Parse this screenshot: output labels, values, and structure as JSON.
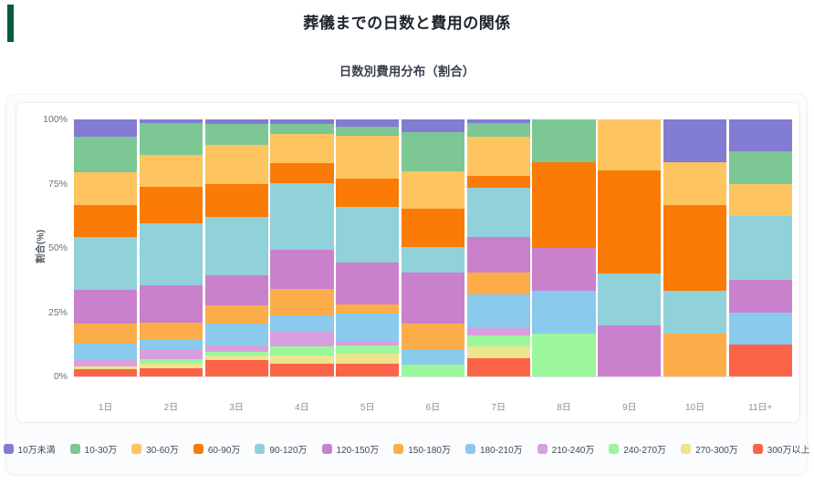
{
  "page": {
    "title": "葬儀までの日数と費用の関係"
  },
  "chart": {
    "subtitle": "日数別費用分布（割合）"
  },
  "accent_color": "#0a5a43",
  "chart_data": {
    "type": "bar",
    "stacked": true,
    "percent": true,
    "title": "日数別費用分布（割合）",
    "xlabel": "",
    "ylabel": "割合(%)",
    "ylim": [
      0,
      100
    ],
    "yticks": [
      "0%",
      "25%",
      "50%",
      "75%",
      "100%"
    ],
    "grid": true,
    "legend_position": "bottom",
    "categories": [
      "1日",
      "2日",
      "3日",
      "4日",
      "5日",
      "6日",
      "7日",
      "8日",
      "9日",
      "10日",
      "11日+"
    ],
    "series": [
      {
        "name": "10万未満",
        "color": "#827cd2",
        "values": [
          6.8,
          1.5,
          1.9,
          1.8,
          2.8,
          5.1,
          1.4,
          0,
          0,
          16.7,
          12.5
        ]
      },
      {
        "name": "10-30万",
        "color": "#7dc795",
        "values": [
          13.9,
          12.5,
          7.9,
          3.9,
          3.6,
          15.0,
          5.5,
          16.7,
          0,
          0,
          12.5
        ]
      },
      {
        "name": "30-60万",
        "color": "#fdc45f",
        "values": [
          12.6,
          12.1,
          15.3,
          11.3,
          16.6,
          14.8,
          15.1,
          0,
          20.0,
          16.7,
          12.5
        ]
      },
      {
        "name": "60-90万",
        "color": "#fa7b06",
        "values": [
          12.4,
          14.2,
          13.0,
          7.7,
          11.0,
          14.6,
          4.7,
          33.3,
          40.0,
          33.3,
          0
        ]
      },
      {
        "name": "90-120万",
        "color": "#90d1da",
        "values": [
          20.7,
          24.3,
          22.6,
          26.2,
          21.6,
          10.2,
          19.1,
          0,
          20.0,
          16.6,
          25.0
        ]
      },
      {
        "name": "120-150万",
        "color": "#c981cc",
        "values": [
          13.2,
          14.6,
          11.5,
          15.1,
          16.4,
          19.6,
          13.9,
          16.7,
          20.0,
          0,
          12.5
        ]
      },
      {
        "name": "150-180万",
        "color": "#fcad49",
        "values": [
          7.8,
          6.3,
          7.1,
          10.1,
          3.6,
          10.0,
          8.3,
          0,
          0,
          16.7,
          0
        ]
      },
      {
        "name": "180-210万",
        "color": "#8acaec",
        "values": [
          6.0,
          3.8,
          8.6,
          6.3,
          11.0,
          6.0,
          13.2,
          16.6,
          0,
          0,
          12.5
        ]
      },
      {
        "name": "210-240万",
        "color": "#d89fde",
        "values": [
          2.7,
          3.9,
          2.4,
          6.0,
          1.2,
          0,
          3.0,
          0,
          0,
          0,
          0
        ]
      },
      {
        "name": "240-270万",
        "color": "#9cf69c",
        "values": [
          0,
          2.0,
          1.5,
          3.3,
          3.2,
          4.7,
          4.2,
          16.7,
          0,
          0,
          0
        ]
      },
      {
        "name": "270-300万",
        "color": "#ede58d",
        "values": [
          1.1,
          1.7,
          2.0,
          3.5,
          3.9,
          0,
          4.5,
          0,
          0,
          0,
          0
        ]
      },
      {
        "name": "300万以上",
        "color": "#fb6449",
        "values": [
          2.8,
          3.1,
          6.2,
          4.8,
          5.1,
          0,
          7.1,
          0,
          0,
          0,
          12.5
        ]
      }
    ]
  }
}
